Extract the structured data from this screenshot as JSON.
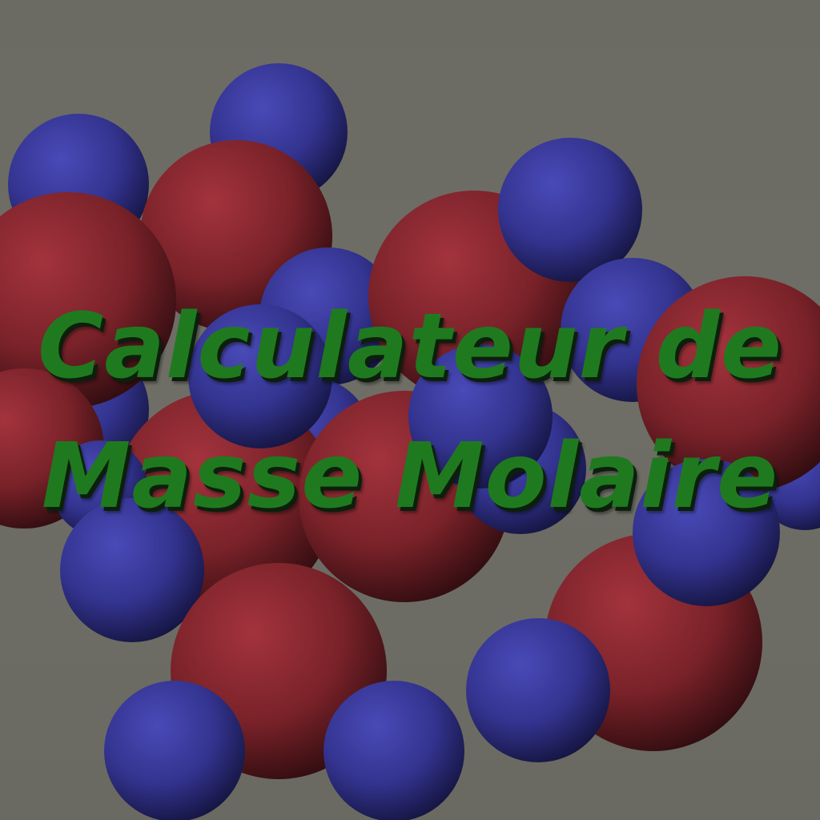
{
  "title": {
    "line1": "Calculateur de",
    "line2": "Masse Molaire"
  },
  "colors": {
    "background": "#6b6b63",
    "oxygen_atom": "#8c2b33",
    "hydrogen_atom": "#3b3b9e",
    "title_text": "#1f7a1f",
    "title_shadow": "#0c1f0c"
  },
  "illustration": {
    "subject": "water-molecules",
    "atom_types": [
      "oxygen-atom",
      "hydrogen-atom"
    ]
  }
}
